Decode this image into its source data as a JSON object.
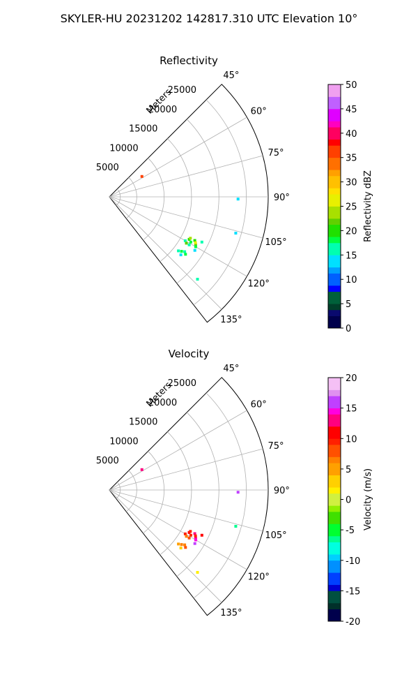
{
  "figure": {
    "title": "SKYLER-HU  20231202  142817.310 UTC Elevation 10°"
  },
  "chart_data": [
    {
      "type": "polar-sector",
      "title": "Reflectivity",
      "radial_axis_label": "Meters",
      "radial_ticks": [
        5000,
        10000,
        15000,
        20000,
        25000
      ],
      "r_max": 29000,
      "theta_range_deg": [
        45,
        142
      ],
      "theta_ticks": [
        "45°",
        "60°",
        "75°",
        "90°",
        "105°",
        "120°",
        "135°"
      ],
      "grid": true,
      "colorbar": {
        "label": "Reflectivity dBZ",
        "min": 0,
        "max": 50,
        "ticks": [
          0,
          5,
          10,
          15,
          20,
          25,
          30,
          35,
          40,
          45,
          50
        ]
      },
      "echoes": [
        {
          "azimuth_deg": 119,
          "range_m": 17000,
          "value": 17
        },
        {
          "azimuth_deg": 118,
          "range_m": 16500,
          "value": 20
        },
        {
          "azimuth_deg": 120,
          "range_m": 16000,
          "value": 16
        },
        {
          "azimuth_deg": 117,
          "range_m": 17500,
          "value": 19
        },
        {
          "azimuth_deg": 121,
          "range_m": 17000,
          "value": 15
        },
        {
          "azimuth_deg": 119,
          "range_m": 18000,
          "value": 22
        },
        {
          "azimuth_deg": 118,
          "range_m": 17800,
          "value": 25
        },
        {
          "azimuth_deg": 120,
          "range_m": 18200,
          "value": 18
        },
        {
          "azimuth_deg": 117,
          "range_m": 16600,
          "value": 23
        },
        {
          "azimuth_deg": 122,
          "range_m": 18400,
          "value": 14
        },
        {
          "azimuth_deg": 116,
          "range_m": 18800,
          "value": 16
        },
        {
          "azimuth_deg": 121,
          "range_m": 16400,
          "value": 21
        },
        {
          "azimuth_deg": 127,
          "range_m": 16500,
          "value": 17
        },
        {
          "azimuth_deg": 128,
          "range_m": 16000,
          "value": 15
        },
        {
          "azimuth_deg": 126,
          "range_m": 17000,
          "value": 16
        },
        {
          "azimuth_deg": 129,
          "range_m": 16800,
          "value": 14
        },
        {
          "azimuth_deg": 127,
          "range_m": 17400,
          "value": 18
        },
        {
          "azimuth_deg": 133,
          "range_m": 22000,
          "value": 15
        },
        {
          "azimuth_deg": 91,
          "range_m": 23500,
          "value": 14
        },
        {
          "azimuth_deg": 106,
          "range_m": 24000,
          "value": 13
        },
        {
          "azimuth_deg": 58,
          "range_m": 7000,
          "value": 36
        }
      ]
    },
    {
      "type": "polar-sector",
      "title": "Velocity",
      "radial_axis_label": "Meters",
      "radial_ticks": [
        5000,
        10000,
        15000,
        20000,
        25000
      ],
      "r_max": 29000,
      "theta_range_deg": [
        45,
        142
      ],
      "theta_ticks": [
        "45°",
        "60°",
        "75°",
        "90°",
        "105°",
        "120°",
        "135°"
      ],
      "grid": true,
      "colorbar": {
        "label": "Velocity (m/s)",
        "min": -20,
        "max": 20,
        "ticks": [
          -20,
          -15,
          -10,
          -5,
          0,
          5,
          10,
          15,
          20
        ]
      },
      "echoes": [
        {
          "azimuth_deg": 119,
          "range_m": 17000,
          "value": 10
        },
        {
          "azimuth_deg": 118,
          "range_m": 16500,
          "value": 11
        },
        {
          "azimuth_deg": 120,
          "range_m": 16000,
          "value": 9
        },
        {
          "azimuth_deg": 117,
          "range_m": 17500,
          "value": 12
        },
        {
          "azimuth_deg": 121,
          "range_m": 17000,
          "value": 8
        },
        {
          "azimuth_deg": 119,
          "range_m": 18000,
          "value": 13
        },
        {
          "azimuth_deg": 118,
          "range_m": 17800,
          "value": 10
        },
        {
          "azimuth_deg": 120,
          "range_m": 18200,
          "value": 14
        },
        {
          "azimuth_deg": 117,
          "range_m": 16600,
          "value": 9
        },
        {
          "azimuth_deg": 122,
          "range_m": 18400,
          "value": 16
        },
        {
          "azimuth_deg": 116,
          "range_m": 18800,
          "value": 11
        },
        {
          "azimuth_deg": 121,
          "range_m": 16400,
          "value": 7
        },
        {
          "azimuth_deg": 127,
          "range_m": 16500,
          "value": 6
        },
        {
          "azimuth_deg": 128,
          "range_m": 16000,
          "value": 5
        },
        {
          "azimuth_deg": 126,
          "range_m": 17000,
          "value": 7
        },
        {
          "azimuth_deg": 129,
          "range_m": 16800,
          "value": 3
        },
        {
          "azimuth_deg": 127,
          "range_m": 17400,
          "value": 8
        },
        {
          "azimuth_deg": 133,
          "range_m": 22000,
          "value": 2
        },
        {
          "azimuth_deg": 91,
          "range_m": 23500,
          "value": 16
        },
        {
          "azimuth_deg": 106,
          "range_m": 24000,
          "value": -7
        },
        {
          "azimuth_deg": 58,
          "range_m": 7000,
          "value": 12
        }
      ]
    }
  ]
}
